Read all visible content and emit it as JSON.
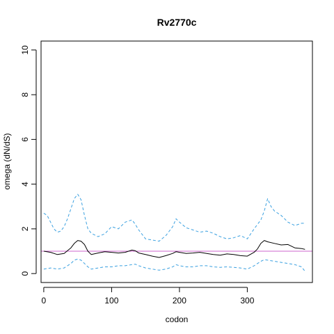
{
  "chart_data": {
    "type": "line",
    "title": "Rv2770c",
    "xlabel": "codon",
    "ylabel": "omega (dN/dS)",
    "xlim": [
      -4,
      396
    ],
    "ylim": [
      -0.4,
      10.4
    ],
    "x_ticks": [
      0,
      100,
      200,
      300
    ],
    "y_ticks": [
      0,
      2,
      4,
      6,
      8,
      10
    ],
    "grid": false,
    "colors": {
      "estimate": "#000000",
      "bounds": "#3aa0e0",
      "reference": "#cc66cc"
    },
    "reference_line": {
      "y": 1
    },
    "series": [
      {
        "style": "solid",
        "x": [
          0,
          10,
          20,
          30,
          40,
          45,
          50,
          55,
          60,
          65,
          70,
          80,
          90,
          100,
          110,
          120,
          130,
          135,
          140,
          150,
          160,
          170,
          180,
          190,
          195,
          200,
          210,
          220,
          230,
          240,
          250,
          260,
          270,
          280,
          290,
          300,
          310,
          315,
          320,
          325,
          330,
          340,
          350,
          360,
          370,
          380,
          385
        ],
        "y": [
          1.0,
          0.95,
          0.85,
          0.9,
          1.15,
          1.35,
          1.48,
          1.45,
          1.3,
          1.0,
          0.85,
          0.92,
          0.98,
          0.95,
          0.92,
          0.95,
          1.05,
          1.02,
          0.92,
          0.85,
          0.78,
          0.72,
          0.8,
          0.9,
          0.98,
          0.95,
          0.9,
          0.92,
          0.95,
          0.9,
          0.85,
          0.82,
          0.88,
          0.85,
          0.8,
          0.78,
          0.95,
          1.1,
          1.35,
          1.48,
          1.42,
          1.35,
          1.28,
          1.3,
          1.15,
          1.12,
          1.08
        ]
      },
      {
        "style": "dashed",
        "x": [
          0,
          5,
          10,
          15,
          20,
          25,
          30,
          35,
          40,
          45,
          50,
          55,
          60,
          65,
          70,
          80,
          90,
          100,
          110,
          120,
          130,
          135,
          140,
          150,
          160,
          170,
          180,
          190,
          195,
          200,
          210,
          220,
          230,
          240,
          250,
          260,
          270,
          280,
          290,
          300,
          310,
          320,
          325,
          330,
          335,
          340,
          350,
          360,
          370,
          380,
          385
        ],
        "y": [
          2.7,
          2.6,
          2.3,
          2.0,
          1.85,
          1.9,
          2.1,
          2.45,
          2.9,
          3.35,
          3.55,
          3.3,
          2.6,
          2.0,
          1.8,
          1.65,
          1.78,
          2.1,
          2.0,
          2.3,
          2.4,
          2.2,
          1.95,
          1.55,
          1.5,
          1.45,
          1.7,
          2.1,
          2.45,
          2.3,
          2.05,
          1.95,
          1.85,
          1.9,
          1.8,
          1.65,
          1.55,
          1.6,
          1.7,
          1.55,
          2.0,
          2.4,
          2.8,
          3.35,
          3.0,
          2.8,
          2.6,
          2.3,
          2.15,
          2.25,
          2.25
        ]
      },
      {
        "style": "dashed",
        "x": [
          0,
          10,
          20,
          30,
          40,
          45,
          50,
          55,
          60,
          65,
          70,
          80,
          90,
          100,
          110,
          120,
          130,
          135,
          140,
          150,
          160,
          170,
          180,
          190,
          195,
          200,
          210,
          220,
          230,
          240,
          250,
          260,
          270,
          280,
          290,
          300,
          310,
          320,
          325,
          330,
          340,
          350,
          360,
          370,
          380,
          385
        ],
        "y": [
          0.2,
          0.25,
          0.2,
          0.25,
          0.45,
          0.6,
          0.65,
          0.6,
          0.45,
          0.3,
          0.2,
          0.25,
          0.3,
          0.3,
          0.35,
          0.35,
          0.4,
          0.42,
          0.35,
          0.25,
          0.2,
          0.15,
          0.2,
          0.3,
          0.4,
          0.35,
          0.3,
          0.3,
          0.35,
          0.35,
          0.3,
          0.28,
          0.3,
          0.28,
          0.25,
          0.2,
          0.35,
          0.55,
          0.62,
          0.6,
          0.55,
          0.5,
          0.45,
          0.4,
          0.3,
          0.1
        ]
      }
    ]
  }
}
